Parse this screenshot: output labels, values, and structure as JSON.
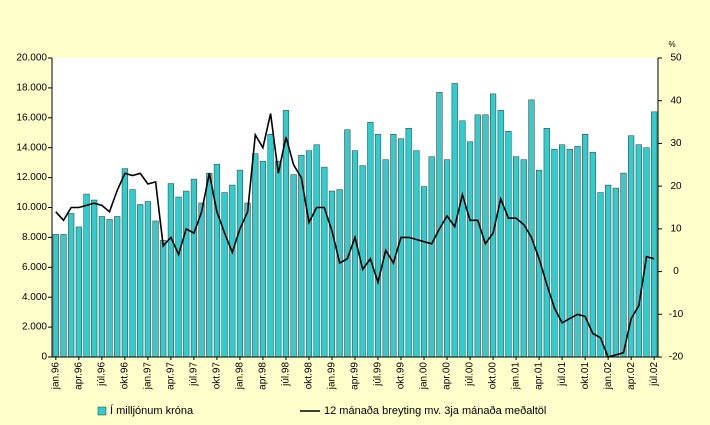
{
  "chart_data": {
    "type": "bar_line",
    "categories": [
      "jan.96",
      null,
      null,
      "apr.96",
      null,
      null,
      "júl.96",
      null,
      null,
      "okt.96",
      null,
      null,
      "jan.97",
      null,
      null,
      "apr.97",
      null,
      null,
      "júl.97",
      null,
      null,
      "okt.97",
      null,
      null,
      "jan.98",
      null,
      null,
      "apr.98",
      null,
      null,
      "júl.98",
      null,
      null,
      "okt.98",
      null,
      null,
      "jan.99",
      null,
      null,
      "apr.99",
      null,
      null,
      "júl.99",
      null,
      null,
      "okt.99",
      null,
      null,
      "jan.00",
      null,
      null,
      "apr.00",
      null,
      null,
      "júl.00",
      null,
      null,
      "okt.00",
      null,
      null,
      "jan.01",
      null,
      null,
      "apr.01",
      null,
      null,
      "júl.01",
      null,
      null,
      "okt.01",
      null,
      null,
      "jan.02",
      null,
      null,
      "apr.02",
      null,
      null,
      "júl.02"
    ],
    "series": [
      {
        "name": "Í milljónum króna",
        "color": "#33cccc",
        "values": [
          8200,
          8200,
          9600,
          8700,
          10900,
          10500,
          9400,
          9200,
          9400,
          12600,
          11200,
          10200,
          10400,
          9100,
          7800,
          11600,
          10700,
          11100,
          11900,
          10300,
          12300,
          12900,
          11000,
          11500,
          12500,
          10300,
          13600,
          13100,
          14900,
          13100,
          16500,
          12200,
          13500,
          13800,
          14200,
          12700,
          11100,
          11200,
          15200,
          13800,
          12800,
          15700,
          14900,
          13200,
          14900,
          14600,
          15300,
          13800,
          11400,
          13400,
          17700,
          13200,
          18300,
          15800,
          14400,
          16200,
          16200,
          17600,
          16500,
          15100,
          13400,
          13200,
          17200,
          12500,
          15300,
          13900,
          14200,
          13900,
          14100,
          14900,
          13700,
          11000,
          11500,
          11300,
          12300,
          14800,
          14200,
          14000,
          16400
        ]
      },
      {
        "name": "12 mánaða breyting mv. 3ja mánaða meðaltöl",
        "color": "#000000",
        "axis": "y2",
        "values": [
          14,
          12,
          15,
          15,
          15.5,
          16,
          15.5,
          14,
          19,
          23,
          22.5,
          23,
          20.5,
          21,
          6,
          8,
          4,
          10,
          9,
          14,
          23,
          14,
          9,
          4.5,
          10,
          14,
          32,
          29,
          37,
          23,
          31.5,
          25,
          22,
          11.5,
          15,
          15,
          9.5,
          2,
          3,
          8,
          0.5,
          3,
          -2.5,
          5,
          2,
          8,
          8,
          7.5,
          7,
          6.5,
          10,
          13,
          10.5,
          18,
          12,
          12,
          6.5,
          9,
          17,
          12.5,
          12.5,
          11,
          8,
          3,
          -3,
          -8.5,
          -12,
          -11,
          -10,
          -10.5,
          -14.5,
          -15.5,
          -20,
          -19.5,
          -19,
          -11,
          -8,
          3.5,
          3
        ]
      }
    ],
    "ylim": [
      0,
      20000
    ],
    "yticks": [
      0,
      {
        "value": 2000,
        "label": "2.000"
      },
      {
        "value": 4000,
        "label": "4.000"
      },
      {
        "value": 6000,
        "label": "6.000"
      },
      {
        "value": 8000,
        "label": "8.000"
      },
      {
        "value": 10000,
        "label": "10.000"
      },
      {
        "value": 12000,
        "label": "12.000"
      },
      {
        "value": 14000,
        "label": "14.000"
      },
      {
        "value": 16000,
        "label": "16.000"
      },
      {
        "value": 18000,
        "label": "18.000"
      },
      {
        "value": 20000,
        "label": "20.000"
      }
    ],
    "y2lim": [
      -20,
      50
    ],
    "y2ticks": [
      -20,
      -10,
      0,
      10,
      20,
      30,
      40,
      50
    ],
    "y2_label": "%",
    "legend": "bottom"
  }
}
